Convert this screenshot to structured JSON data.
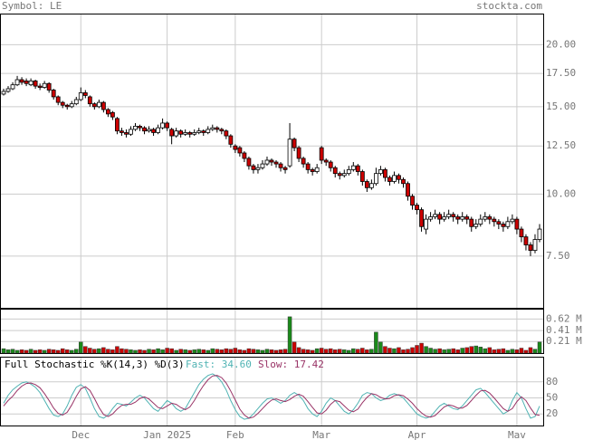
{
  "header": {
    "symbol": "Symbol: LE",
    "site": "stockta.com"
  },
  "chart_data": [
    {
      "type": "candlestick",
      "log_scale": true,
      "grid": true,
      "up_color": "#ffffff",
      "down_color": "#cc0000",
      "categories": [
        null,
        null,
        null,
        null,
        null,
        null,
        null,
        null,
        null,
        null,
        null,
        null,
        null,
        null,
        null,
        null,
        null,
        "Dec",
        null,
        null,
        null,
        null,
        null,
        null,
        null,
        null,
        null,
        null,
        null,
        null,
        null,
        null,
        null,
        null,
        null,
        null,
        "Jan 2025",
        null,
        null,
        null,
        null,
        null,
        null,
        null,
        null,
        null,
        null,
        null,
        null,
        null,
        null,
        "Feb",
        null,
        null,
        null,
        null,
        null,
        null,
        null,
        null,
        null,
        null,
        null,
        null,
        null,
        null,
        null,
        null,
        null,
        null,
        "Mar",
        null,
        null,
        null,
        null,
        null,
        null,
        null,
        null,
        null,
        null,
        null,
        null,
        null,
        null,
        null,
        null,
        null,
        null,
        null,
        null,
        "Apr",
        null,
        null,
        null,
        null,
        null,
        null,
        null,
        null,
        null,
        null,
        null,
        null,
        null,
        null,
        null,
        null,
        null,
        null,
        null,
        null,
        null,
        "Mav",
        null,
        null,
        null,
        null,
        null
      ],
      "open": [
        15.9,
        16.1,
        16.3,
        16.6,
        17.0,
        16.9,
        16.6,
        16.9,
        16.5,
        16.4,
        16.7,
        16.2,
        15.7,
        15.3,
        15.1,
        15.0,
        15.2,
        15.5,
        16.0,
        15.7,
        15.2,
        15.0,
        15.3,
        14.8,
        14.6,
        14.2,
        13.4,
        13.3,
        13.2,
        13.5,
        13.7,
        13.6,
        13.4,
        13.5,
        13.3,
        13.6,
        13.9,
        13.5,
        13.1,
        13.4,
        13.2,
        13.3,
        13.2,
        13.3,
        13.4,
        13.3,
        13.5,
        13.6,
        13.5,
        13.4,
        13.1,
        12.5,
        12.4,
        12.1,
        11.8,
        11.4,
        11.2,
        11.3,
        11.5,
        11.7,
        11.6,
        11.5,
        11.3,
        11.4,
        12.9,
        12.4,
        11.8,
        11.5,
        11.2,
        11.1,
        12.4,
        11.7,
        11.6,
        11.3,
        11.0,
        10.9,
        11.0,
        11.2,
        11.4,
        11.1,
        10.6,
        10.3,
        10.5,
        11.0,
        11.2,
        10.8,
        10.6,
        10.9,
        10.7,
        10.5,
        9.9,
        9.5,
        9.3,
        8.5,
        8.9,
        9.0,
        9.1,
        8.9,
        9.0,
        9.1,
        9.0,
        8.9,
        9.0,
        8.9,
        8.6,
        8.7,
        8.9,
        9.0,
        8.9,
        8.8,
        8.7,
        8.6,
        8.8,
        8.9,
        8.5,
        8.2,
        7.9,
        7.7,
        8.1
      ],
      "high": [
        16.3,
        16.5,
        16.8,
        17.3,
        17.2,
        17.1,
        17.1,
        17.0,
        16.7,
        16.9,
        16.8,
        16.3,
        15.8,
        15.4,
        15.2,
        15.4,
        15.7,
        16.4,
        16.2,
        15.8,
        15.3,
        15.5,
        15.4,
        14.9,
        14.7,
        14.3,
        13.6,
        13.5,
        13.7,
        13.9,
        13.8,
        13.7,
        13.7,
        13.6,
        13.8,
        14.2,
        14.0,
        13.6,
        13.6,
        13.5,
        13.5,
        13.4,
        13.5,
        13.6,
        13.5,
        13.7,
        13.8,
        13.7,
        13.6,
        13.5,
        13.2,
        12.6,
        12.5,
        12.2,
        11.9,
        11.5,
        11.5,
        11.7,
        11.9,
        11.8,
        11.7,
        11.6,
        11.4,
        13.9,
        13.0,
        12.5,
        11.9,
        11.6,
        11.3,
        11.5,
        12.5,
        11.8,
        11.7,
        11.4,
        11.1,
        11.2,
        11.4,
        11.6,
        11.5,
        11.2,
        10.7,
        10.7,
        11.3,
        11.4,
        11.3,
        10.9,
        11.1,
        11.0,
        10.8,
        10.6,
        10.0,
        9.6,
        9.4,
        9.1,
        9.2,
        9.3,
        9.2,
        9.2,
        9.3,
        9.2,
        9.1,
        9.2,
        9.1,
        9.0,
        8.9,
        9.1,
        9.2,
        9.1,
        9.0,
        8.9,
        8.8,
        9.0,
        9.1,
        9.0,
        8.6,
        8.3,
        8.0,
        8.3,
        8.7
      ],
      "low": [
        15.8,
        16.0,
        16.2,
        16.5,
        16.6,
        16.5,
        16.5,
        16.3,
        16.2,
        16.3,
        16.0,
        15.5,
        15.1,
        14.9,
        14.8,
        14.9,
        15.1,
        15.4,
        15.6,
        15.0,
        14.8,
        14.9,
        14.6,
        14.3,
        14.1,
        13.2,
        13.1,
        13.0,
        13.1,
        13.4,
        13.4,
        13.2,
        13.3,
        13.1,
        13.2,
        13.5,
        13.4,
        12.6,
        13.0,
        13.0,
        13.1,
        13.0,
        13.1,
        13.2,
        13.1,
        13.2,
        13.4,
        13.3,
        13.2,
        12.9,
        12.4,
        12.1,
        11.9,
        11.6,
        11.2,
        11.0,
        11.0,
        11.2,
        11.4,
        11.4,
        11.3,
        11.1,
        11.0,
        11.3,
        12.2,
        11.6,
        11.3,
        11.0,
        10.9,
        11.0,
        11.5,
        11.4,
        11.1,
        10.8,
        10.7,
        10.8,
        10.9,
        11.1,
        10.9,
        10.4,
        10.1,
        10.2,
        10.4,
        10.9,
        10.6,
        10.4,
        10.5,
        10.5,
        10.3,
        9.7,
        9.3,
        9.1,
        8.4,
        8.3,
        8.8,
        8.9,
        8.7,
        8.8,
        8.9,
        8.8,
        8.7,
        8.8,
        8.7,
        8.4,
        8.5,
        8.6,
        8.8,
        8.7,
        8.6,
        8.5,
        8.4,
        8.5,
        8.7,
        8.3,
        8.0,
        7.7,
        7.5,
        7.6,
        8.0
      ],
      "close": [
        16.1,
        16.3,
        16.6,
        17.0,
        16.8,
        16.7,
        16.9,
        16.5,
        16.4,
        16.7,
        16.2,
        15.7,
        15.3,
        15.1,
        15.0,
        15.2,
        15.5,
        16.0,
        15.8,
        15.2,
        15.0,
        15.3,
        14.8,
        14.5,
        14.3,
        13.4,
        13.3,
        13.2,
        13.5,
        13.7,
        13.6,
        13.4,
        13.5,
        13.3,
        13.6,
        13.9,
        13.6,
        13.1,
        13.4,
        13.2,
        13.3,
        13.2,
        13.3,
        13.4,
        13.3,
        13.5,
        13.6,
        13.5,
        13.4,
        13.1,
        12.6,
        12.3,
        12.1,
        11.8,
        11.4,
        11.2,
        11.3,
        11.5,
        11.7,
        11.6,
        11.5,
        11.3,
        11.2,
        12.9,
        12.4,
        11.8,
        11.5,
        11.2,
        11.1,
        11.3,
        11.7,
        11.6,
        11.3,
        11.0,
        10.9,
        11.0,
        11.2,
        11.4,
        11.1,
        10.6,
        10.3,
        10.5,
        11.0,
        11.2,
        10.8,
        10.6,
        10.9,
        10.7,
        10.5,
        9.9,
        9.5,
        9.3,
        8.6,
        8.9,
        9.0,
        9.1,
        8.9,
        9.0,
        9.1,
        9.0,
        8.9,
        9.0,
        8.9,
        8.6,
        8.7,
        8.9,
        9.0,
        8.9,
        8.8,
        8.7,
        8.6,
        8.8,
        8.9,
        8.5,
        8.2,
        7.9,
        7.7,
        8.1,
        8.5
      ],
      "ylim": [
        5.9,
        23.1
      ],
      "yticks": [
        {
          "value": 7.5,
          "label": "7.50"
        },
        {
          "value": 10,
          "label": "10.00"
        },
        {
          "value": 12.5,
          "label": "12.50"
        },
        {
          "value": 15,
          "label": "15.00"
        },
        {
          "value": 17.5,
          "label": "17.50"
        },
        {
          "value": 20,
          "label": "20.00"
        }
      ]
    },
    {
      "type": "bar",
      "up_color": "#1a8a1a",
      "down_color": "#cc0000",
      "values": [
        0.08,
        0.06,
        0.07,
        0.05,
        0.06,
        0.05,
        0.07,
        0.05,
        0.06,
        0.05,
        0.07,
        0.06,
        0.05,
        0.08,
        0.06,
        0.05,
        0.07,
        0.2,
        0.12,
        0.09,
        0.07,
        0.08,
        0.1,
        0.07,
        0.06,
        0.12,
        0.08,
        0.07,
        0.06,
        0.05,
        0.06,
        0.05,
        0.07,
        0.06,
        0.08,
        0.06,
        0.09,
        0.08,
        0.05,
        0.07,
        0.06,
        0.05,
        0.06,
        0.07,
        0.06,
        0.05,
        0.08,
        0.07,
        0.06,
        0.08,
        0.07,
        0.09,
        0.06,
        0.05,
        0.08,
        0.07,
        0.06,
        0.05,
        0.07,
        0.06,
        0.05,
        0.06,
        0.07,
        0.66,
        0.2,
        0.1,
        0.07,
        0.06,
        0.05,
        0.08,
        0.09,
        0.07,
        0.08,
        0.06,
        0.07,
        0.06,
        0.05,
        0.08,
        0.07,
        0.09,
        0.06,
        0.07,
        0.38,
        0.2,
        0.12,
        0.09,
        0.08,
        0.1,
        0.06,
        0.07,
        0.1,
        0.14,
        0.18,
        0.12,
        0.09,
        0.07,
        0.08,
        0.06,
        0.07,
        0.08,
        0.06,
        0.09,
        0.1,
        0.12,
        0.13,
        0.11,
        0.08,
        0.1,
        0.06,
        0.07,
        0.08,
        0.05,
        0.07,
        0.06,
        0.09,
        0.05,
        0.1,
        0.07,
        0.2
      ],
      "ylim": [
        0,
        0.79
      ],
      "yticks": [
        {
          "value": 0.21,
          "label": "0.21 M"
        },
        {
          "value": 0.41,
          "label": "0.41 M"
        },
        {
          "value": 0.62,
          "label": "0.62 M"
        }
      ]
    },
    {
      "type": "line",
      "title": "Full Stochastic %K(14,3) %D(3)",
      "series": [
        {
          "name": "Fast: 34.60",
          "color": "#4fb3b3",
          "values": [
            40,
            55,
            65,
            72,
            78,
            80,
            76,
            70,
            60,
            45,
            30,
            18,
            15,
            20,
            35,
            55,
            70,
            75,
            68,
            50,
            30,
            15,
            12,
            18,
            30,
            40,
            38,
            35,
            42,
            50,
            55,
            50,
            40,
            30,
            25,
            35,
            45,
            40,
            30,
            25,
            30,
            45,
            60,
            75,
            85,
            92,
            95,
            90,
            80,
            65,
            45,
            28,
            15,
            10,
            12,
            20,
            30,
            40,
            48,
            50,
            45,
            40,
            45,
            55,
            60,
            55,
            45,
            30,
            20,
            15,
            25,
            40,
            50,
            45,
            35,
            25,
            20,
            28,
            40,
            55,
            60,
            58,
            50,
            45,
            48,
            55,
            58,
            55,
            50,
            40,
            30,
            20,
            15,
            12,
            15,
            25,
            35,
            40,
            35,
            30,
            28,
            35,
            45,
            55,
            65,
            68,
            60,
            50,
            40,
            30,
            20,
            25,
            45,
            60,
            50,
            30,
            12,
            15,
            34.6
          ]
        },
        {
          "name": "Slow: 17.42",
          "color": "#993366",
          "values": [
            35,
            45,
            53,
            64,
            72,
            77,
            78,
            75,
            69,
            58,
            45,
            31,
            21,
            18,
            23,
            37,
            53,
            67,
            71,
            64,
            49,
            32,
            19,
            15,
            20,
            29,
            36,
            38,
            38,
            42,
            49,
            52,
            48,
            40,
            32,
            30,
            35,
            40,
            38,
            32,
            28,
            33,
            45,
            60,
            73,
            84,
            91,
            92,
            88,
            78,
            63,
            46,
            29,
            18,
            12,
            14,
            21,
            30,
            39,
            46,
            48,
            45,
            43,
            47,
            53,
            57,
            53,
            43,
            32,
            22,
            20,
            27,
            38,
            45,
            43,
            35,
            27,
            24,
            29,
            41,
            51,
            58,
            56,
            51,
            48,
            49,
            54,
            56,
            54,
            48,
            40,
            30,
            22,
            16,
            14,
            17,
            25,
            33,
            37,
            35,
            31,
            31,
            36,
            45,
            55,
            63,
            64,
            59,
            50,
            40,
            30,
            25,
            30,
            43,
            52,
            45,
            31,
            19,
            17.42
          ]
        }
      ],
      "ylim": [
        0,
        100
      ],
      "yticks": [
        20,
        50,
        80
      ]
    }
  ]
}
